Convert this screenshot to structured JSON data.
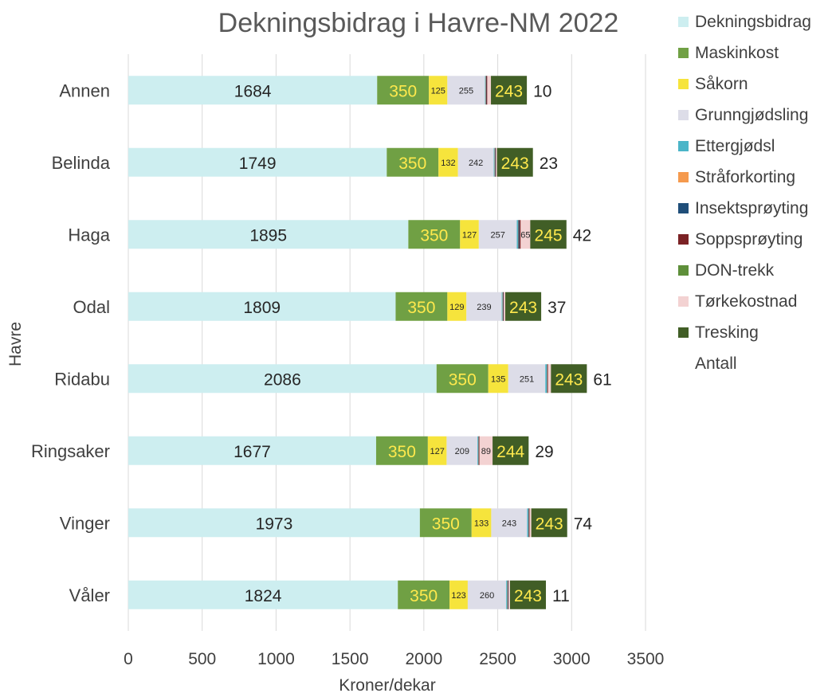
{
  "chart_data": {
    "type": "bar",
    "orientation": "horizontal",
    "stacked": true,
    "title": "Dekningsbidrag  i Havre-NM 2022",
    "xlabel": "Kroner/dekar",
    "ylabel": "Havre",
    "xlim": [
      0,
      3500
    ],
    "xticks": [
      "0",
      "500",
      "1000",
      "1500",
      "2000",
      "2500",
      "3000",
      "3500"
    ],
    "grid": "vertical",
    "legend_position": "right",
    "categories": [
      "Våler",
      "Vinger",
      "Ringsaker",
      "Ridabu",
      "Odal",
      "Haga",
      "Belinda",
      "Annen"
    ],
    "series": [
      {
        "name": "Dekningsbidrag",
        "color": "#CDEEF0",
        "label_color": "#262626",
        "values": [
          1824,
          1973,
          1677,
          2086,
          1809,
          1895,
          1749,
          1684
        ],
        "labels": [
          "1824",
          "1973",
          "1677",
          "2086",
          "1809",
          "1895",
          "1749",
          "1684"
        ]
      },
      {
        "name": "Maskinkost",
        "color": "#70A044",
        "label_color": "#FFE94D",
        "values": [
          350,
          350,
          350,
          350,
          350,
          350,
          350,
          350
        ],
        "labels": [
          "350",
          "350",
          "350",
          "350",
          "350",
          "350",
          "350",
          "350"
        ]
      },
      {
        "name": "Såkorn",
        "color": "#F6E43C",
        "label_color": "#262626",
        "values": [
          123,
          133,
          127,
          135,
          129,
          127,
          132,
          125
        ],
        "labels": [
          "123",
          "133",
          "127",
          "135",
          "129",
          "127",
          "132",
          "125"
        ]
      },
      {
        "name": "Grunngjødsling",
        "color": "#DDDDE8",
        "label_color": "#262626",
        "values": [
          260,
          243,
          209,
          251,
          239,
          257,
          242,
          255
        ],
        "labels": [
          "260",
          "243",
          "209",
          "251",
          "239",
          "257",
          "242",
          "255"
        ]
      },
      {
        "name": "Ettergjødsl",
        "color": "#4BB5C8",
        "label_color": "#262626",
        "values": [
          8,
          8,
          5,
          10,
          6,
          8,
          6,
          4
        ],
        "labels": [
          "",
          "",
          "",
          "",
          "",
          "",
          "",
          ""
        ]
      },
      {
        "name": "Stråforkorting",
        "color": "#F59A4E",
        "label_color": "#262626",
        "values": [
          2,
          2,
          2,
          2,
          2,
          2,
          2,
          2
        ],
        "labels": [
          "",
          "",
          "",
          "",
          "",
          "",
          "",
          ""
        ]
      },
      {
        "name": "Insektsprøyting",
        "color": "#1F4E79",
        "label_color": "#262626",
        "values": [
          3,
          3,
          3,
          3,
          3,
          8,
          3,
          3
        ],
        "labels": [
          "",
          "",
          "",
          "",
          "",
          "",
          "",
          ""
        ]
      },
      {
        "name": "Soppsprøyting",
        "color": "#7B2225",
        "label_color": "#262626",
        "values": [
          3,
          3,
          3,
          3,
          3,
          8,
          3,
          6
        ],
        "labels": [
          "",
          "",
          "",
          "",
          "",
          "",
          "",
          ""
        ]
      },
      {
        "name": "DON-trekk",
        "color": "#5E8F3A",
        "label_color": "#262626",
        "values": [
          0,
          0,
          0,
          0,
          0,
          0,
          0,
          0
        ],
        "labels": [
          "",
          "",
          "",
          "",
          "",
          "",
          "",
          ""
        ]
      },
      {
        "name": "Tørkekostnad",
        "color": "#F3D2D2",
        "label_color": "#262626",
        "values": [
          10,
          12,
          89,
          20,
          10,
          65,
          8,
          25
        ],
        "labels": [
          "",
          "",
          "89",
          "",
          "",
          "65",
          "",
          ""
        ]
      },
      {
        "name": "Tresking",
        "color": "#415E26",
        "label_color": "#FFE94D",
        "values": [
          243,
          243,
          244,
          243,
          243,
          245,
          243,
          243
        ],
        "labels": [
          "243",
          "243",
          "244",
          "243",
          "243",
          "245",
          "243",
          "243"
        ]
      },
      {
        "name": "Antall",
        "color": "#FFFFFF",
        "label_color": "#262626",
        "values": [
          11,
          74,
          29,
          61,
          37,
          42,
          23,
          10
        ],
        "labels": [
          "11",
          "74",
          "29",
          "61",
          "37",
          "42",
          "23",
          "10"
        ]
      }
    ]
  }
}
